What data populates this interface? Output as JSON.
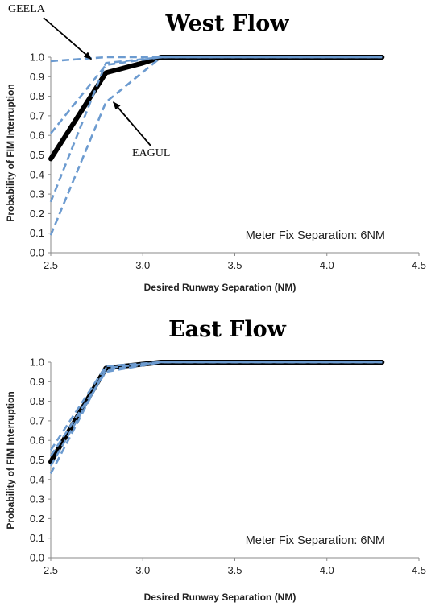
{
  "chart_data": [
    {
      "type": "line",
      "title": "West Flow",
      "xlabel": "Desired Runway Separation (NM)",
      "ylabel": "Probability of FIM Interruption",
      "xlim": [
        2.5,
        4.5
      ],
      "ylim": [
        0.0,
        1.0
      ],
      "xticks": [
        "2.5",
        "3.0",
        "3.5",
        "4.0",
        "4.5"
      ],
      "yticks": [
        "0.0",
        "0.1",
        "0.2",
        "0.3",
        "0.4",
        "0.5",
        "0.6",
        "0.7",
        "0.8",
        "0.9",
        "1.0"
      ],
      "note": "Meter Fix Separation: 6NM",
      "main_series": {
        "color": "#000000",
        "points": [
          [
            2.5,
            0.48
          ],
          [
            2.8,
            0.92
          ],
          [
            3.0,
            0.97
          ],
          [
            3.1,
            1.0
          ],
          [
            4.3,
            1.0
          ]
        ]
      },
      "fix_series": [
        {
          "label": "GEELA",
          "color": "#6c9bd0",
          "points": [
            [
              2.5,
              0.98
            ],
            [
              2.8,
              1.0
            ],
            [
              3.1,
              1.0
            ],
            [
              4.3,
              1.0
            ]
          ]
        },
        {
          "color": "#6c9bd0",
          "points": [
            [
              2.5,
              0.61
            ],
            [
              2.8,
              0.96
            ],
            [
              3.1,
              1.0
            ],
            [
              4.3,
              1.0
            ]
          ]
        },
        {
          "color": "#6c9bd0",
          "points": [
            [
              2.5,
              0.26
            ],
            [
              2.8,
              0.97
            ],
            [
              3.1,
              1.0
            ],
            [
              4.3,
              1.0
            ]
          ]
        },
        {
          "label": "EAGUL",
          "color": "#6c9bd0",
          "points": [
            [
              2.5,
              0.09
            ],
            [
              2.8,
              0.77
            ],
            [
              3.1,
              1.0
            ],
            [
              4.3,
              1.0
            ]
          ]
        }
      ],
      "annotations": [
        {
          "text": "GEELA",
          "arrow_to": [
            2.72,
            0.99
          ]
        },
        {
          "text": "EAGUL",
          "arrow_to": [
            2.84,
            0.77
          ]
        }
      ]
    },
    {
      "type": "line",
      "title": "East Flow",
      "xlabel": "Desired Runway Separation (NM)",
      "ylabel": "Probability of FIM Interruption",
      "xlim": [
        2.5,
        4.5
      ],
      "ylim": [
        0.0,
        1.0
      ],
      "xticks": [
        "2.5",
        "3.0",
        "3.5",
        "4.0",
        "4.5"
      ],
      "yticks": [
        "0.0",
        "0.1",
        "0.2",
        "0.3",
        "0.4",
        "0.5",
        "0.6",
        "0.7",
        "0.8",
        "0.9",
        "1.0"
      ],
      "note": "Meter Fix Separation: 6NM",
      "main_series": {
        "color": "#000000",
        "points": [
          [
            2.5,
            0.49
          ],
          [
            2.8,
            0.97
          ],
          [
            3.1,
            1.0
          ],
          [
            4.3,
            1.0
          ]
        ]
      },
      "fix_series": [
        {
          "color": "#6c9bd0",
          "points": [
            [
              2.5,
              0.55
            ],
            [
              2.8,
              0.98
            ],
            [
              3.1,
              1.0
            ],
            [
              4.3,
              1.0
            ]
          ]
        },
        {
          "color": "#6c9bd0",
          "points": [
            [
              2.5,
              0.47
            ],
            [
              2.8,
              0.96
            ],
            [
              3.1,
              1.0
            ],
            [
              4.3,
              1.0
            ]
          ]
        },
        {
          "color": "#6c9bd0",
          "points": [
            [
              2.5,
              0.43
            ],
            [
              2.8,
              0.97
            ],
            [
              3.1,
              1.0
            ],
            [
              4.3,
              1.0
            ]
          ]
        },
        {
          "color": "#6c9bd0",
          "points": [
            [
              2.5,
              0.52
            ],
            [
              2.8,
              0.95
            ],
            [
              3.1,
              1.0
            ],
            [
              4.3,
              1.0
            ]
          ]
        }
      ],
      "annotations": []
    }
  ]
}
